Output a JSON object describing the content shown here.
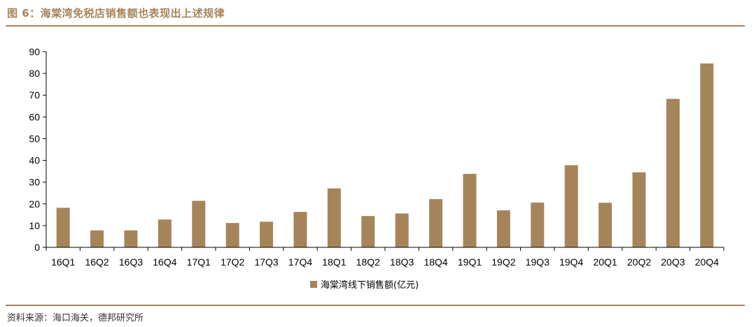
{
  "figure": {
    "title": "图 6：海棠湾免税店销售额也表现出上述规律",
    "source": "资料来源：海口海关，德邦研究所"
  },
  "colors": {
    "bar": "#a6845a",
    "title": "#a6845a",
    "rule": "#a6845a",
    "axis": "#000000"
  },
  "chart_data": {
    "type": "bar",
    "categories": [
      "16Q1",
      "16Q2",
      "16Q3",
      "16Q4",
      "17Q1",
      "17Q2",
      "17Q3",
      "17Q4",
      "18Q1",
      "18Q2",
      "18Q3",
      "18Q4",
      "19Q1",
      "19Q2",
      "19Q3",
      "19Q4",
      "20Q1",
      "20Q2",
      "20Q3",
      "20Q4"
    ],
    "series": [
      {
        "name": "海棠湾线下销售额(亿元)",
        "values": [
          18.2,
          7.8,
          7.8,
          12.8,
          21.4,
          11.2,
          11.8,
          16.3,
          27.1,
          14.4,
          15.6,
          22.2,
          33.8,
          17.0,
          20.6,
          37.8,
          20.5,
          34.5,
          68.3,
          84.6
        ]
      }
    ],
    "yticks": [
      0,
      10,
      20,
      30,
      40,
      50,
      60,
      70,
      80,
      90
    ],
    "ylim": [
      0,
      90
    ],
    "grid": false,
    "legend_position": "bottom"
  }
}
